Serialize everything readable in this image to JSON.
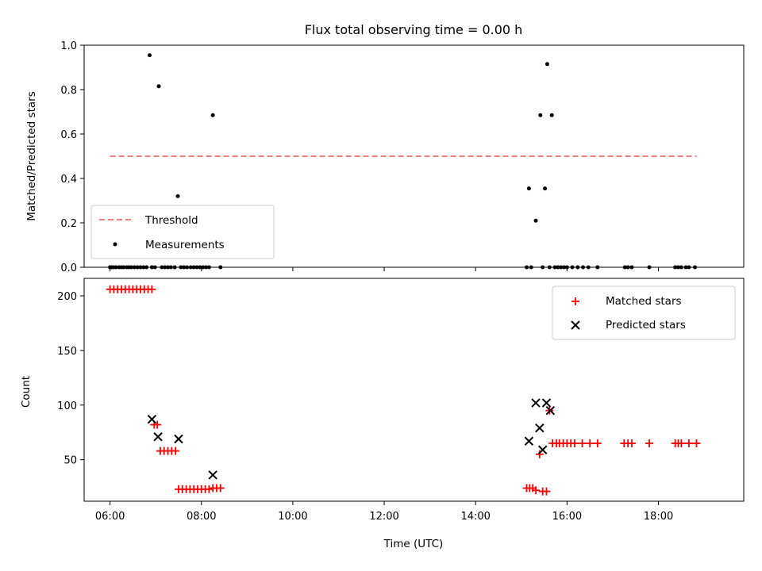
{
  "colors": {
    "threshold": "#f08080",
    "measurement": "#000000",
    "matched": "#ff0000",
    "predicted": "#000000"
  },
  "chart_data": [
    {
      "type": "scatter",
      "title": "Flux total observing time = 0.00 h",
      "xlabel": "",
      "ylabel": "Matched/Predicted stars",
      "xlim": [
        "05:26",
        "19:52"
      ],
      "ylim": [
        0,
        1.0
      ],
      "yticks": [
        0.0,
        0.2,
        0.4,
        0.6,
        0.8,
        1.0
      ],
      "ytick_labels": [
        "0.0",
        "0.2",
        "0.4",
        "0.6",
        "0.8",
        "1.0"
      ],
      "grid": false,
      "legend_position": "lower-left",
      "threshold": {
        "name": "Threshold",
        "x": [
          "06:00",
          "18:50"
        ],
        "y": 0.5
      },
      "measurements": {
        "name": "Measurements",
        "points": [
          [
            "06:00",
            0
          ],
          [
            "06:02",
            0
          ],
          [
            "06:05",
            0
          ],
          [
            "06:08",
            0
          ],
          [
            "06:12",
            0
          ],
          [
            "06:15",
            0
          ],
          [
            "06:18",
            0
          ],
          [
            "06:22",
            0
          ],
          [
            "06:25",
            0
          ],
          [
            "06:28",
            0
          ],
          [
            "06:32",
            0
          ],
          [
            "06:36",
            0
          ],
          [
            "06:40",
            0
          ],
          [
            "06:44",
            0
          ],
          [
            "06:48",
            0
          ],
          [
            "06:52",
            0.955
          ],
          [
            "06:55",
            0
          ],
          [
            "06:59",
            0
          ],
          [
            "07:04",
            0.815
          ],
          [
            "07:08",
            0
          ],
          [
            "07:12",
            0
          ],
          [
            "07:16",
            0
          ],
          [
            "07:20",
            0
          ],
          [
            "07:25",
            0
          ],
          [
            "07:29",
            0.32
          ],
          [
            "07:33",
            0
          ],
          [
            "07:37",
            0
          ],
          [
            "07:41",
            0
          ],
          [
            "07:46",
            0
          ],
          [
            "07:50",
            0
          ],
          [
            "07:54",
            0
          ],
          [
            "07:58",
            0
          ],
          [
            "08:02",
            0
          ],
          [
            "08:06",
            0
          ],
          [
            "08:10",
            0
          ],
          [
            "08:15",
            0.685
          ],
          [
            "08:25",
            0
          ],
          [
            "15:07",
            0
          ],
          [
            "15:10",
            0.355
          ],
          [
            "15:13",
            0
          ],
          [
            "15:19",
            0.21
          ],
          [
            "15:25",
            0.685
          ],
          [
            "15:28",
            0
          ],
          [
            "15:31",
            0.355
          ],
          [
            "15:34",
            0.915
          ],
          [
            "15:37",
            0
          ],
          [
            "15:40",
            0.685
          ],
          [
            "15:44",
            0
          ],
          [
            "15:48",
            0
          ],
          [
            "15:52",
            0
          ],
          [
            "15:56",
            0
          ],
          [
            "16:00",
            0
          ],
          [
            "16:07",
            0
          ],
          [
            "16:14",
            0
          ],
          [
            "16:21",
            0
          ],
          [
            "16:28",
            0
          ],
          [
            "16:40",
            0
          ],
          [
            "17:16",
            0
          ],
          [
            "17:20",
            0
          ],
          [
            "17:25",
            0
          ],
          [
            "17:48",
            0
          ],
          [
            "18:22",
            0
          ],
          [
            "18:26",
            0
          ],
          [
            "18:30",
            0
          ],
          [
            "18:36",
            0
          ],
          [
            "18:40",
            0
          ],
          [
            "18:48",
            0
          ]
        ]
      }
    },
    {
      "type": "scatter",
      "title": "",
      "xlabel": "Time (UTC)",
      "ylabel": "Count",
      "xlim": [
        "05:26",
        "19:52"
      ],
      "ylim": [
        12,
        216
      ],
      "xticks": [
        "06:00",
        "08:00",
        "10:00",
        "12:00",
        "14:00",
        "16:00",
        "18:00"
      ],
      "yticks": [
        50,
        100,
        150,
        200
      ],
      "ytick_labels": [
        "50",
        "100",
        "150",
        "200"
      ],
      "grid": false,
      "legend_position": "top-right",
      "series": [
        {
          "name": "Matched stars",
          "marker": "plus",
          "points": [
            [
              "06:00",
              206
            ],
            [
              "06:05",
              206
            ],
            [
              "06:10",
              206
            ],
            [
              "06:15",
              206
            ],
            [
              "06:20",
              206
            ],
            [
              "06:25",
              206
            ],
            [
              "06:30",
              206
            ],
            [
              "06:35",
              206
            ],
            [
              "06:40",
              206
            ],
            [
              "06:45",
              206
            ],
            [
              "06:50",
              206
            ],
            [
              "06:55",
              206
            ],
            [
              "06:58",
              82
            ],
            [
              "07:02",
              82
            ],
            [
              "07:06",
              58
            ],
            [
              "07:11",
              58
            ],
            [
              "07:16",
              58
            ],
            [
              "07:21",
              58
            ],
            [
              "07:26",
              58
            ],
            [
              "07:30",
              23
            ],
            [
              "07:35",
              23
            ],
            [
              "07:40",
              23
            ],
            [
              "07:45",
              23
            ],
            [
              "07:50",
              23
            ],
            [
              "07:55",
              23
            ],
            [
              "08:00",
              23
            ],
            [
              "08:05",
              23
            ],
            [
              "08:10",
              23
            ],
            [
              "08:15",
              24
            ],
            [
              "08:20",
              24
            ],
            [
              "08:25",
              24
            ],
            [
              "15:07",
              24
            ],
            [
              "15:11",
              24
            ],
            [
              "15:15",
              24
            ],
            [
              "15:19",
              22
            ],
            [
              "15:24",
              55
            ],
            [
              "15:28",
              21
            ],
            [
              "15:33",
              21
            ],
            [
              "15:37",
              95
            ],
            [
              "15:41",
              65
            ],
            [
              "15:46",
              65
            ],
            [
              "15:50",
              65
            ],
            [
              "15:55",
              65
            ],
            [
              "16:00",
              65
            ],
            [
              "16:05",
              65
            ],
            [
              "16:10",
              65
            ],
            [
              "16:20",
              65
            ],
            [
              "16:30",
              65
            ],
            [
              "16:40",
              65
            ],
            [
              "17:15",
              65
            ],
            [
              "17:20",
              65
            ],
            [
              "17:25",
              65
            ],
            [
              "17:48",
              65
            ],
            [
              "18:22",
              65
            ],
            [
              "18:26",
              65
            ],
            [
              "18:30",
              65
            ],
            [
              "18:40",
              65
            ],
            [
              "18:50",
              65
            ]
          ]
        },
        {
          "name": "Predicted stars",
          "marker": "x",
          "points": [
            [
              "06:55",
              87
            ],
            [
              "07:03",
              71
            ],
            [
              "07:30",
              69
            ],
            [
              "08:15",
              36
            ],
            [
              "15:10",
              67
            ],
            [
              "15:19",
              102
            ],
            [
              "15:24",
              79
            ],
            [
              "15:28",
              59
            ],
            [
              "15:33",
              102
            ],
            [
              "15:38",
              95
            ]
          ]
        }
      ]
    }
  ]
}
